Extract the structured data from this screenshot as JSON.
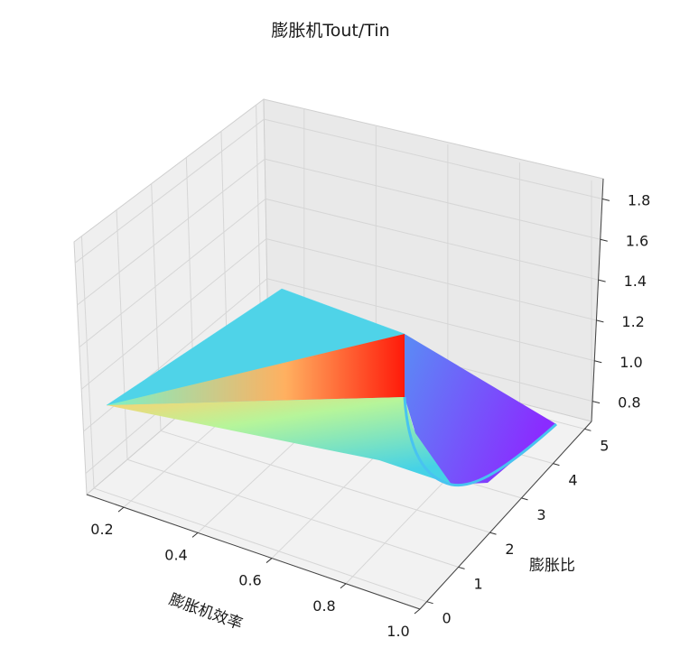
{
  "chart_data": {
    "type": "surface3d",
    "title": "膨胀机Tout/Tin",
    "xlabel": "膨胀机效率",
    "ylabel": "膨胀比",
    "zlabel": "",
    "x_ticks": [
      "0.2",
      "0.4",
      "0.6",
      "0.8",
      "1.0"
    ],
    "y_ticks": [
      "0",
      "1",
      "2",
      "3",
      "4",
      "5"
    ],
    "z_ticks": [
      "0.8",
      "1.0",
      "1.2",
      "1.4",
      "1.6",
      "1.8"
    ],
    "xlim": [
      0.1,
      1.0
    ],
    "ylim": [
      0,
      5
    ],
    "zlim": [
      0.7,
      1.9
    ],
    "colormap": "rainbow",
    "grid": true,
    "surface_corners": [
      {
        "x": 0.1,
        "y": 0.2,
        "z": 1.05
      },
      {
        "x": 1.0,
        "y": 0.2,
        "z": 1.45
      },
      {
        "x": 0.1,
        "y": 5.0,
        "z": 0.97
      },
      {
        "x": 1.0,
        "y": 5.0,
        "z": 0.75
      }
    ],
    "peak": {
      "x": 1.0,
      "y": 0.2,
      "z": 1.45
    },
    "trough": {
      "x": 0.97,
      "y": 3.3,
      "z": 0.72
    }
  }
}
